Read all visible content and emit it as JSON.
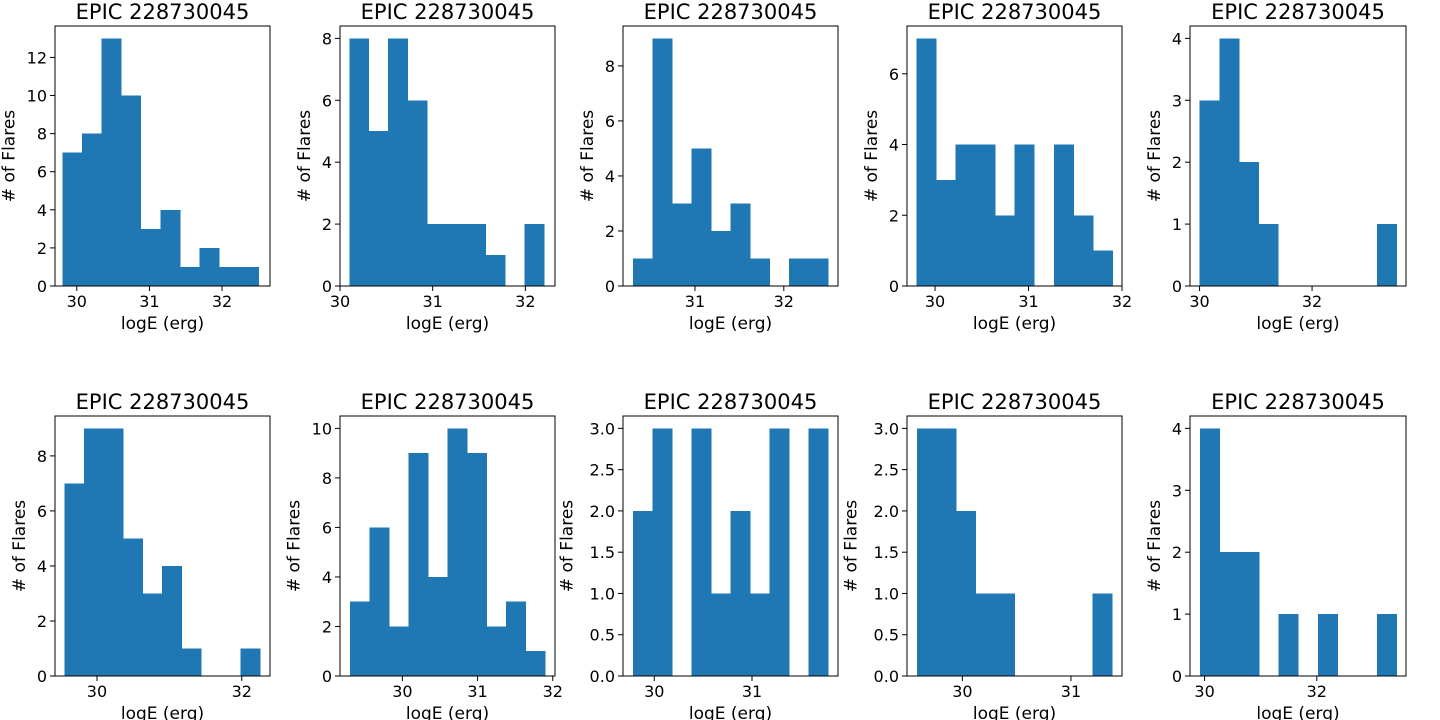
{
  "chart_data": [
    {
      "type": "bar",
      "title": "EPIC 228730045",
      "xlabel": "logE (erg)",
      "ylabel": "# of Flares",
      "bin_edges": [
        29.8,
        30.07,
        30.34,
        30.61,
        30.88,
        31.15,
        31.42,
        31.69,
        31.96,
        32.23,
        32.5
      ],
      "values": [
        7,
        8,
        13,
        10,
        3,
        4,
        1,
        2,
        1,
        1
      ],
      "xlim": [
        29.7,
        32.66
      ],
      "ylim": [
        0,
        13.65
      ],
      "xticks": [
        30,
        31,
        32
      ],
      "yticks": [
        0,
        2,
        4,
        6,
        8,
        10,
        12
      ],
      "xtick_labels": [
        "30",
        "31",
        "32"
      ],
      "ytick_labels": [
        "0",
        "2",
        "4",
        "6",
        "8",
        "10",
        "12"
      ],
      "color": "#1f77b4"
    },
    {
      "type": "bar",
      "title": "EPIC 228730045",
      "xlabel": "logE (erg)",
      "ylabel": "# of Flares",
      "bin_edges": [
        30.1,
        30.31,
        30.52,
        30.73,
        30.94,
        31.15,
        31.36,
        31.57,
        31.78,
        31.99,
        32.2
      ],
      "values": [
        8,
        5,
        8,
        6,
        2,
        2,
        2,
        1,
        0,
        2
      ],
      "xlim": [
        30.0,
        32.32
      ],
      "ylim": [
        0,
        8.4
      ],
      "xticks": [
        30,
        31,
        32
      ],
      "yticks": [
        0,
        2,
        4,
        6,
        8
      ],
      "xtick_labels": [
        "30",
        "31",
        "32"
      ],
      "ytick_labels": [
        "0",
        "2",
        "4",
        "6",
        "8"
      ],
      "color": "#1f77b4"
    },
    {
      "type": "bar",
      "title": "EPIC 228730045",
      "xlabel": "logE (erg)",
      "ylabel": "# of Flares",
      "bin_edges": [
        30.3,
        30.52,
        30.74,
        30.96,
        31.18,
        31.4,
        31.62,
        31.84,
        32.06,
        32.28,
        32.5
      ],
      "values": [
        1,
        9,
        3,
        5,
        2,
        3,
        1,
        0,
        1,
        1
      ],
      "xlim": [
        30.19,
        32.61
      ],
      "ylim": [
        0,
        9.45
      ],
      "xticks": [
        31,
        32
      ],
      "yticks": [
        0,
        2,
        4,
        6,
        8
      ],
      "xtick_labels": [
        "31",
        "32"
      ],
      "ytick_labels": [
        "0",
        "2",
        "4",
        "6",
        "8"
      ],
      "color": "#1f77b4"
    },
    {
      "type": "bar",
      "title": "EPIC 228730045",
      "xlabel": "logE (erg)",
      "ylabel": "# of Flares",
      "bin_edges": [
        29.8,
        30.01,
        30.22,
        30.43,
        30.64,
        30.85,
        31.06,
        31.27,
        31.48,
        31.69,
        31.9
      ],
      "values": [
        7,
        3,
        4,
        4,
        2,
        4,
        0,
        4,
        2,
        1
      ],
      "xlim": [
        29.7,
        32.0
      ],
      "ylim": [
        0,
        7.35
      ],
      "xticks": [
        30,
        31,
        32
      ],
      "yticks": [
        0,
        2,
        4,
        6
      ],
      "xtick_labels": [
        "30",
        "31",
        "32"
      ],
      "ytick_labels": [
        "0",
        "2",
        "4",
        "6"
      ],
      "color": "#1f77b4"
    },
    {
      "type": "bar",
      "title": "EPIC 228730045",
      "xlabel": "logE (erg)",
      "ylabel": "# of Flares",
      "bin_edges": [
        30.0,
        30.35,
        30.7,
        31.05,
        31.4,
        31.75,
        32.1,
        32.45,
        32.8,
        33.15,
        33.5
      ],
      "values": [
        3,
        4,
        2,
        1,
        0,
        0,
        0,
        0,
        0,
        1
      ],
      "xlim": [
        29.83,
        33.67
      ],
      "ylim": [
        0,
        4.2
      ],
      "xticks": [
        30,
        32
      ],
      "yticks": [
        0,
        1,
        2,
        3,
        4
      ],
      "xtick_labels": [
        "30",
        "32"
      ],
      "ytick_labels": [
        "0",
        "1",
        "2",
        "3",
        "4"
      ],
      "color": "#1f77b4"
    },
    {
      "type": "bar",
      "title": "EPIC 228730045",
      "xlabel": "logE (erg)",
      "ylabel": "# of Flares",
      "bin_edges": [
        29.55,
        29.82,
        30.09,
        30.36,
        30.63,
        30.9,
        31.17,
        31.44,
        31.71,
        31.98,
        32.25
      ],
      "values": [
        7,
        9,
        9,
        5,
        3,
        4,
        1,
        0,
        0,
        1
      ],
      "xlim": [
        29.42,
        32.39
      ],
      "ylim": [
        0,
        9.45
      ],
      "xticks": [
        30,
        32
      ],
      "yticks": [
        0,
        2,
        4,
        6,
        8
      ],
      "xtick_labels": [
        "30",
        "32"
      ],
      "ytick_labels": [
        "0",
        "2",
        "4",
        "6",
        "8"
      ],
      "color": "#1f77b4"
    },
    {
      "type": "bar",
      "title": "EPIC 228730045",
      "xlabel": "logE (erg)",
      "ylabel": "# of Flares",
      "bin_edges": [
        29.3,
        29.56,
        29.82,
        30.08,
        30.34,
        30.6,
        30.86,
        31.12,
        31.38,
        31.64,
        31.9
      ],
      "values": [
        3,
        6,
        2,
        9,
        4,
        10,
        9,
        2,
        3,
        1
      ],
      "xlim": [
        29.17,
        32.03
      ],
      "ylim": [
        0,
        10.5
      ],
      "xticks": [
        30,
        31,
        32
      ],
      "yticks": [
        0,
        2,
        4,
        6,
        8,
        10
      ],
      "xtick_labels": [
        "30",
        "31",
        "32"
      ],
      "ytick_labels": [
        "0",
        "2",
        "4",
        "6",
        "8",
        "10"
      ],
      "color": "#1f77b4"
    },
    {
      "type": "bar",
      "title": "EPIC 228730045",
      "xlabel": "logE (erg)",
      "ylabel": "# of Flares",
      "bin_edges": [
        29.78,
        29.98,
        30.18,
        30.38,
        30.58,
        30.78,
        30.98,
        31.18,
        31.38,
        31.58,
        31.78
      ],
      "values": [
        2,
        3,
        0,
        3,
        1,
        2,
        1,
        3,
        0,
        3
      ],
      "xlim": [
        29.68,
        31.88
      ],
      "ylim": [
        0,
        3.15
      ],
      "xticks": [
        30,
        31
      ],
      "yticks": [
        0,
        0.5,
        1,
        1.5,
        2,
        2.5,
        3
      ],
      "xtick_labels": [
        "30",
        "31"
      ],
      "ytick_labels": [
        "0.0",
        "0.5",
        "1.0",
        "1.5",
        "2.0",
        "2.5",
        "3.0"
      ],
      "color": "#1f77b4"
    },
    {
      "type": "bar",
      "title": "EPIC 228730045",
      "xlabel": "logE (erg)",
      "ylabel": "# of Flares",
      "bin_edges": [
        29.58,
        29.76,
        29.94,
        30.12,
        30.3,
        30.48,
        30.66,
        30.84,
        31.02,
        31.2,
        31.38
      ],
      "values": [
        3,
        3,
        2,
        1,
        1,
        0,
        0,
        0,
        0,
        1
      ],
      "xlim": [
        29.49,
        31.47
      ],
      "ylim": [
        0,
        3.15
      ],
      "xticks": [
        30,
        31
      ],
      "yticks": [
        0,
        0.5,
        1,
        1.5,
        2,
        2.5,
        3
      ],
      "xtick_labels": [
        "30",
        "31"
      ],
      "ytick_labels": [
        "0.0",
        "0.5",
        "1.0",
        "1.5",
        "2.0",
        "2.5",
        "3.0"
      ],
      "color": "#1f77b4"
    },
    {
      "type": "bar",
      "title": "EPIC 228730045",
      "xlabel": "logE (erg)",
      "ylabel": "# of Flares",
      "bin_edges": [
        29.92,
        30.27,
        30.62,
        30.97,
        31.32,
        31.67,
        32.02,
        32.37,
        32.72,
        33.07,
        33.42
      ],
      "values": [
        4,
        2,
        2,
        0,
        1,
        0,
        1,
        0,
        0,
        1
      ],
      "xlim": [
        29.74,
        33.59
      ],
      "ylim": [
        0,
        4.2
      ],
      "xticks": [
        30,
        32
      ],
      "yticks": [
        0,
        1,
        2,
        3,
        4
      ],
      "xtick_labels": [
        "30",
        "32"
      ],
      "ytick_labels": [
        "0",
        "1",
        "2",
        "3",
        "4"
      ],
      "color": "#1f77b4"
    }
  ]
}
